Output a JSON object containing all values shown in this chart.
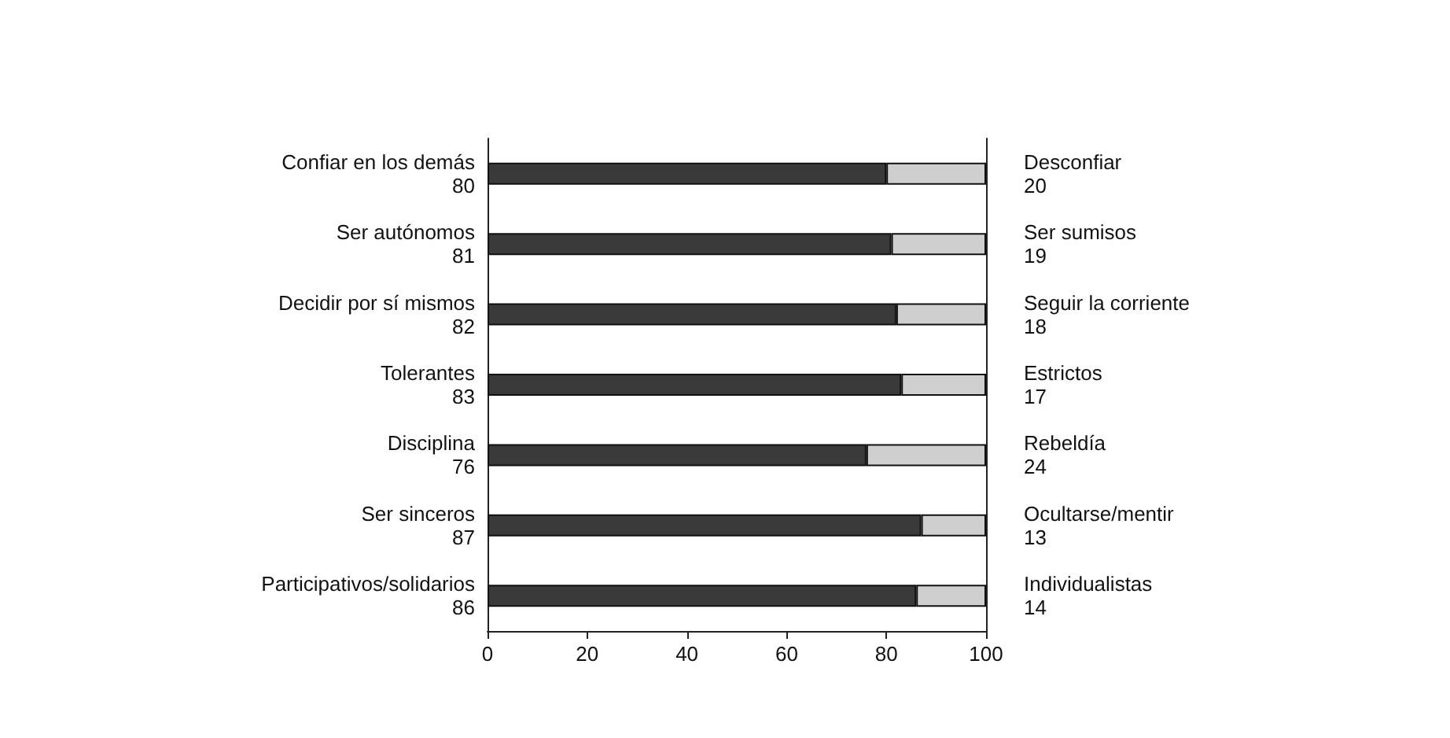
{
  "chart_data": {
    "type": "bar",
    "orientation": "horizontal",
    "stacked": true,
    "data_labels": true,
    "categories": [
      "Confiar en los demás",
      "Ser autónomos",
      "Decidir por sí mismos",
      "Tolerantes",
      "Disciplina",
      "Ser sinceros",
      "Participativos/solidarios"
    ],
    "series": [
      {
        "color": "#3a3a3a",
        "values": [
          80,
          81,
          82,
          83,
          76,
          87,
          86
        ]
      },
      {
        "color": "#cfcfcf",
        "values": [
          20,
          19,
          18,
          17,
          24,
          13,
          14
        ]
      }
    ],
    "xlim": [
      0,
      100
    ],
    "xticks": [
      0,
      20,
      40,
      60,
      80,
      100
    ],
    "grid": false,
    "annotations": [
      "Desconfiar",
      "Ser sumisos",
      "Seguir la corriente",
      "Estrictos",
      "Rebeldía",
      "Ocultarse/mentir",
      "Individualistas"
    ]
  }
}
